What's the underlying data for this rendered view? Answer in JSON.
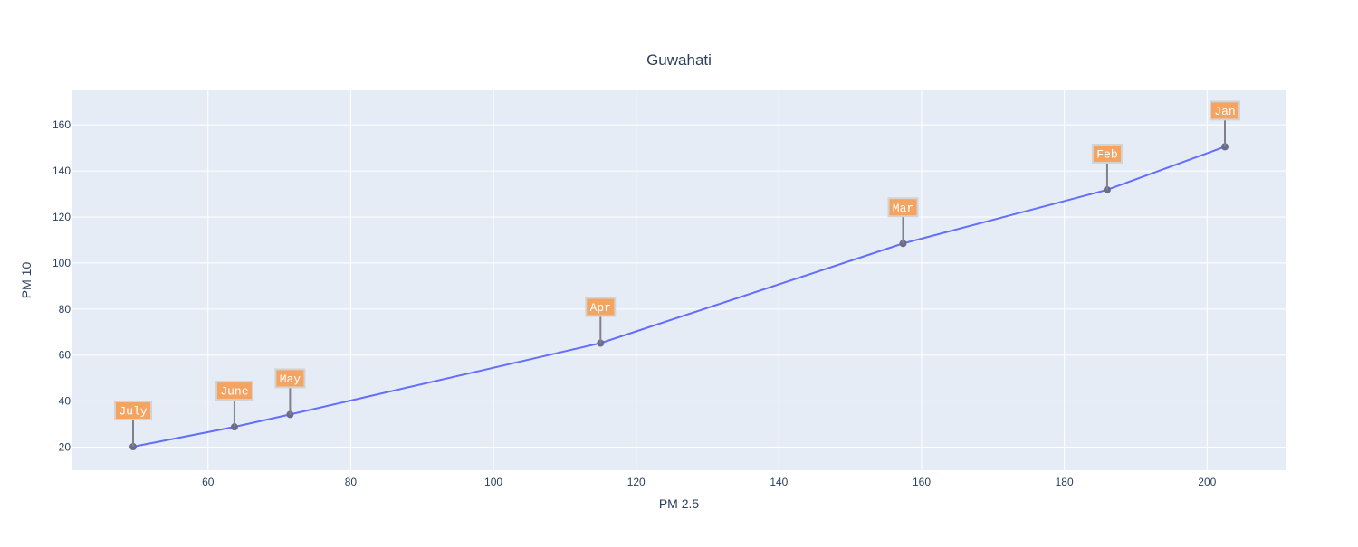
{
  "chart_data": {
    "type": "line",
    "title": "Guwahati",
    "xlabel": "PM 2.5",
    "ylabel": "PM 10",
    "xlim": [
      41,
      211
    ],
    "ylim": [
      10,
      175
    ],
    "x_ticks": [
      60,
      80,
      100,
      120,
      140,
      160,
      180,
      200
    ],
    "y_ticks": [
      20,
      40,
      60,
      80,
      100,
      120,
      140,
      160
    ],
    "grid": true,
    "legend": "none",
    "colors": {
      "plot_bg": "#e5ecf6",
      "grid": "#ffffff",
      "line": "#636efa",
      "marker": "#6b6b8a",
      "annotation_bg": "#f4a460",
      "annotation_border": "#d3d3d3",
      "annotation_arrow": "#808090",
      "text": "#2a3f5f"
    },
    "series": [
      {
        "points": [
          {
            "x": 49.5,
            "y": 20.2,
            "label": "July"
          },
          {
            "x": 63.7,
            "y": 28.8,
            "label": "June"
          },
          {
            "x": 71.5,
            "y": 34.2,
            "label": "May"
          },
          {
            "x": 115.0,
            "y": 65.2,
            "label": "Apr"
          },
          {
            "x": 157.4,
            "y": 108.5,
            "label": "Mar"
          },
          {
            "x": 186.0,
            "y": 131.8,
            "label": "Feb"
          },
          {
            "x": 202.5,
            "y": 150.5,
            "label": "Jan"
          }
        ]
      }
    ]
  }
}
